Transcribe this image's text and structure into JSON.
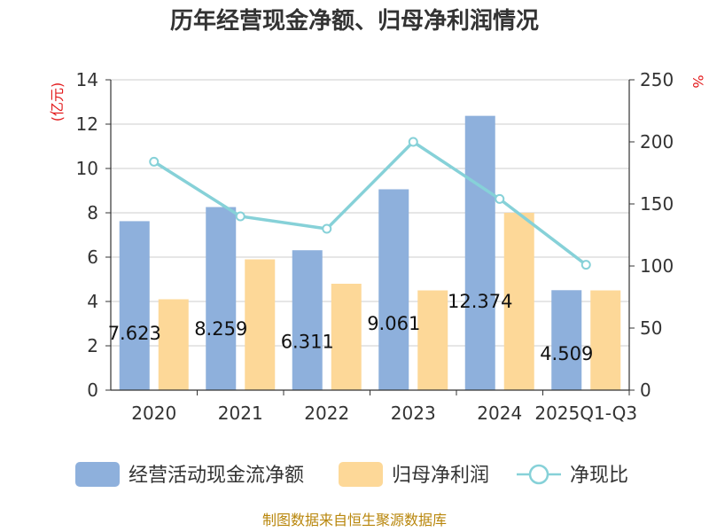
{
  "chart_data": {
    "type": "bar",
    "title": "历年经营现金净额、归母净利润情况",
    "categories": [
      "2020",
      "2021",
      "2022",
      "2023",
      "2024",
      "2025Q1-Q3"
    ],
    "series": [
      {
        "name": "经营活动现金流净额",
        "type": "bar",
        "axis": "left",
        "color": "#8eb0dc",
        "values": [
          7.623,
          8.259,
          6.311,
          9.061,
          12.374,
          4.509
        ],
        "data_labels": [
          "7.623",
          "8.259",
          "6.311",
          "9.061",
          "12.374",
          "4.509"
        ]
      },
      {
        "name": "归母净利润",
        "type": "bar",
        "axis": "left",
        "color": "#fdd898",
        "values": [
          4.1,
          5.9,
          4.8,
          4.5,
          8.0,
          4.5
        ]
      },
      {
        "name": "净现比",
        "type": "line",
        "axis": "right",
        "color": "#86d1d8",
        "values": [
          184,
          140,
          130,
          200,
          154,
          101
        ]
      }
    ],
    "yaxis_left": {
      "label": "(亿元)",
      "min": 0,
      "max": 14,
      "ticks": [
        "0",
        "2",
        "4",
        "6",
        "8",
        "10",
        "12",
        "14"
      ]
    },
    "yaxis_right": {
      "label": "%",
      "min": 0,
      "max": 250,
      "ticks": [
        "0",
        "50",
        "100",
        "150",
        "200",
        "250"
      ]
    },
    "grid": true,
    "legend_position": "bottom",
    "source": "制图数据来自恒生聚源数据库"
  }
}
